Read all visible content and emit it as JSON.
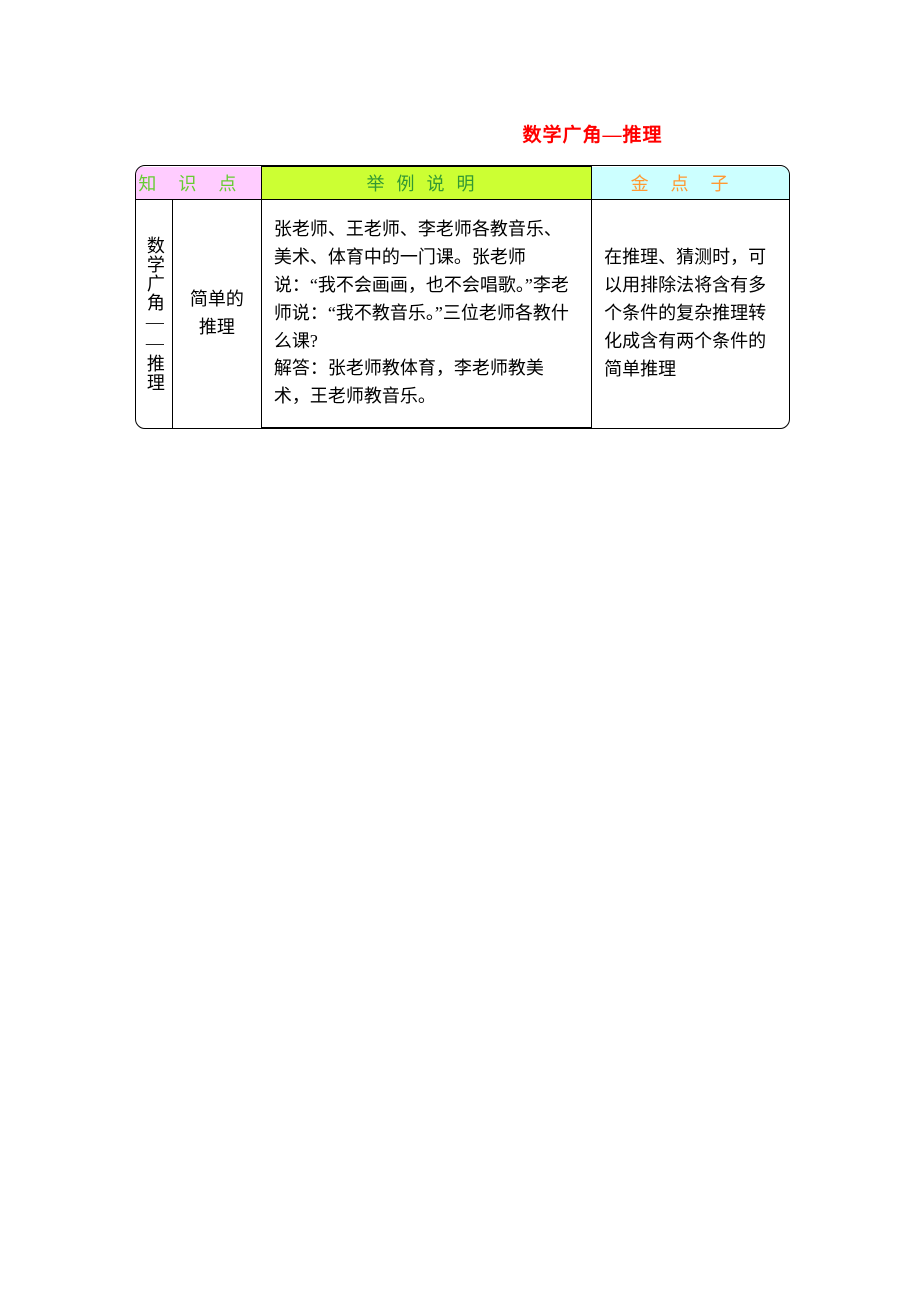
{
  "document": {
    "title": "数学广角—推理",
    "title_color": "#ff0000",
    "table": {
      "border_color": "#000000",
      "border_radius": 10,
      "headers": [
        {
          "label": "知识点",
          "bg_color": "#ffccff",
          "text_color": "#66cc33",
          "letter_spacing": 22
        },
        {
          "label": "举例说明",
          "bg_color": "#ccff33",
          "text_color": "#339933",
          "letter_spacing": 12
        },
        {
          "label": "金点子",
          "bg_color": "#ccffff",
          "text_color": "#ff9933",
          "letter_spacing": 22
        }
      ],
      "body": {
        "section": "数学广角——推理",
        "topic": "简单的推理",
        "example": "张老师、王老师、李老师各教音乐、美术、体育中的一门课。张老师说：“我不会画画，也不会唱歌。”李老师说：“我不教音乐。”三位老师各教什么课?\n解答：张老师教体育，李老师教美术，王老师教音乐。",
        "tips": "在推理、猜测时，可以用排除法将含有多个条件的复杂推理转化成含有两个条件的简单推理"
      }
    }
  },
  "styles": {
    "page_bg": "#ffffff",
    "body_font_size": 18,
    "header_font_size": 18,
    "title_font_size": 19,
    "line_height": 1.55
  }
}
